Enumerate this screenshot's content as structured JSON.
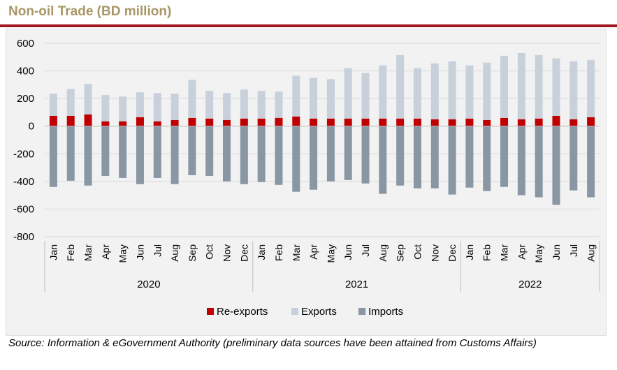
{
  "title": "Non-oil Trade (BD million)",
  "source": "Source: Information & eGovernment Authority (preliminary data sources have been attained from Customs Affairs)",
  "colors": {
    "title": "#a89666",
    "rule": "#a0171f",
    "reexports": "#c00000",
    "exports": "#c8d0da",
    "imports": "#8996a4"
  },
  "chart_data": {
    "type": "bar",
    "stacked": true,
    "ylim": [
      -800,
      600
    ],
    "yticks": [
      600,
      400,
      200,
      0,
      -200,
      -400,
      -600,
      -800
    ],
    "grid": true,
    "legend_position": "bottom",
    "categories": [
      "Jan",
      "Feb",
      "Mar",
      "Apr",
      "May",
      "Jun",
      "Jul",
      "Aug",
      "Sep",
      "Oct",
      "Nov",
      "Dec",
      "Jan",
      "Feb",
      "Mar",
      "Apr",
      "May",
      "Jun",
      "Jul",
      "Aug",
      "Sep",
      "Oct",
      "Nov",
      "Dec",
      "Jan",
      "Feb",
      "Mar",
      "Apr",
      "May",
      "Jun",
      "Jul",
      "Aug"
    ],
    "years": [
      {
        "label": "2020",
        "count": 12
      },
      {
        "label": "2021",
        "count": 12
      },
      {
        "label": "2022",
        "count": 8
      }
    ],
    "series": [
      {
        "name": "Re-exports",
        "colorKey": "reexports",
        "values": [
          75,
          75,
          85,
          35,
          35,
          65,
          35,
          45,
          60,
          55,
          45,
          55,
          55,
          60,
          70,
          55,
          55,
          55,
          55,
          55,
          55,
          55,
          50,
          50,
          55,
          45,
          60,
          50,
          55,
          75,
          50,
          65
        ]
      },
      {
        "name": "Exports",
        "colorKey": "exports",
        "values": [
          160,
          195,
          220,
          190,
          180,
          180,
          205,
          190,
          275,
          200,
          195,
          210,
          200,
          190,
          295,
          295,
          285,
          365,
          330,
          385,
          460,
          365,
          405,
          420,
          385,
          415,
          450,
          480,
          460,
          415,
          420,
          415
        ]
      },
      {
        "name": "Imports",
        "colorKey": "imports",
        "values": [
          -440,
          -395,
          -430,
          -360,
          -375,
          -420,
          -375,
          -420,
          -355,
          -360,
          -400,
          -420,
          -405,
          -425,
          -475,
          -460,
          -400,
          -390,
          -415,
          -490,
          -430,
          -450,
          -450,
          -495,
          -445,
          -470,
          -440,
          -500,
          -515,
          -570,
          -465,
          -515
        ]
      }
    ]
  }
}
